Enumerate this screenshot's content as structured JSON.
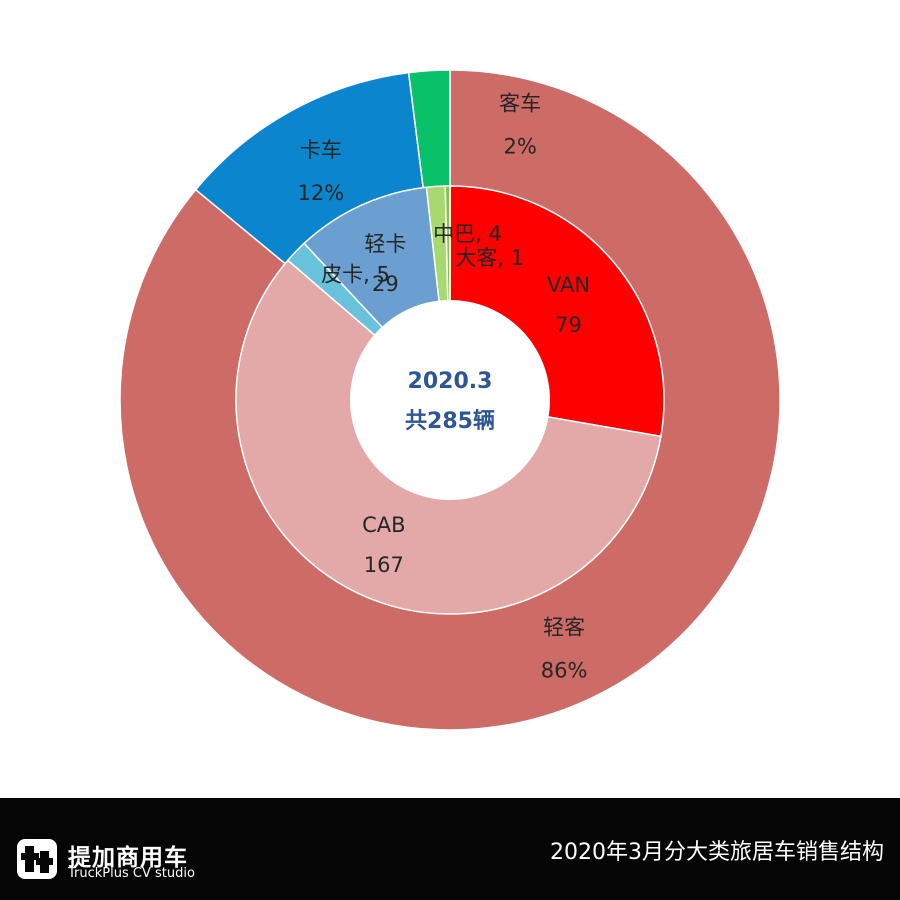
{
  "chart_data": {
    "type": "pie",
    "variant": "donut",
    "center_label": {
      "line1": "2020.3",
      "line2": "共285辆"
    },
    "outer_ring": [
      {
        "label": "轻客",
        "value": 86,
        "display": "86%",
        "color": "#cd6b67"
      },
      {
        "label": "卡车",
        "value": 12,
        "display": "12%",
        "color": "#0b86ce"
      },
      {
        "label": "客车",
        "value": 2,
        "display": "2%",
        "color": "#08c169"
      }
    ],
    "inner_ring": [
      {
        "label": "VAN",
        "value": 79,
        "color": "#ff0000",
        "label_style": "stacked"
      },
      {
        "label": "CAB",
        "value": 167,
        "color": "#e2a9a8",
        "label_style": "stacked"
      },
      {
        "label": "皮卡",
        "value": 5,
        "color": "#68c2dc",
        "label_style": "inline"
      },
      {
        "label": "轻卡",
        "value": 29,
        "color": "#6b9fd1",
        "label_style": "stacked"
      },
      {
        "label": "中巴",
        "value": 4,
        "color": "#a8d96f",
        "label_style": "inline"
      },
      {
        "label": "大客",
        "value": 1,
        "color": "#7fc34b",
        "label_style": "inline"
      }
    ]
  },
  "footer": {
    "brand_cn": "提加商用车",
    "brand_en": "TruckPlus CV studio",
    "caption": "2020年3月分大类旅居车销售结构",
    "background_color": "#050505"
  }
}
